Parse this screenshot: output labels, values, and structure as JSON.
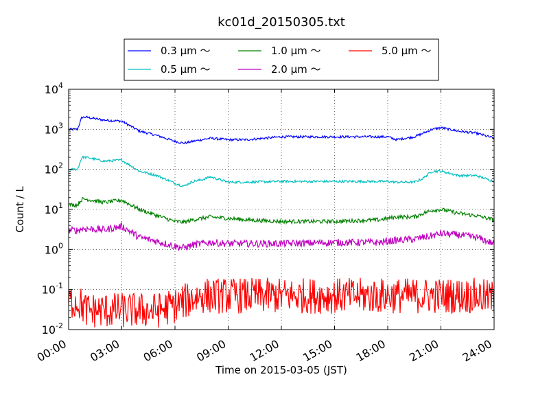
{
  "chart_data": {
    "type": "line",
    "title": "kc01d_20150305.txt",
    "xlabel": "Time on 2015-03-05 (JST)",
    "ylabel": "Count / L",
    "y_scale": "log",
    "ylim": [
      0.01,
      10000
    ],
    "xlim": [
      "00:00",
      "24:00"
    ],
    "grid": true,
    "legend_position": "top",
    "x_tick_labels": [
      "00:00",
      "03:00",
      "06:00",
      "09:00",
      "12:00",
      "15:00",
      "18:00",
      "21:00",
      "24:00"
    ],
    "y_ticks": [
      {
        "base": "10",
        "exp": "-2"
      },
      {
        "base": "10",
        "exp": "-1"
      },
      {
        "base": "10",
        "exp": "0"
      },
      {
        "base": "10",
        "exp": "1"
      },
      {
        "base": "10",
        "exp": "2"
      },
      {
        "base": "10",
        "exp": "3"
      },
      {
        "base": "10",
        "exp": "4"
      }
    ],
    "x_hours": [
      0,
      0.5,
      0.75,
      1,
      2,
      3,
      4,
      5,
      6,
      6.5,
      7,
      7.5,
      8,
      9,
      10,
      12,
      15,
      17.5,
      18,
      18.5,
      19.5,
      20,
      20.5,
      21,
      22,
      23,
      24
    ],
    "series": [
      {
        "name": "0.3 μm ～",
        "color": "#0000ff",
        "noise": 0.03,
        "values": [
          1000,
          1000,
          2000,
          2000,
          1700,
          1600,
          900,
          700,
          500,
          450,
          500,
          550,
          600,
          550,
          550,
          650,
          650,
          650,
          650,
          550,
          650,
          800,
          1000,
          1100,
          900,
          800,
          600
        ]
      },
      {
        "name": "0.5 μm ～",
        "color": "#00bfbf",
        "noise": 0.03,
        "values": [
          100,
          100,
          200,
          200,
          160,
          170,
          90,
          70,
          45,
          38,
          50,
          55,
          65,
          48,
          48,
          50,
          50,
          50,
          50,
          48,
          48,
          60,
          90,
          90,
          70,
          70,
          50
        ]
      },
      {
        "name": "1.0 μm ～",
        "color": "#008000",
        "noise": 0.05,
        "values": [
          13,
          13,
          18,
          18,
          15,
          17,
          10,
          7,
          5,
          4.8,
          5.5,
          6,
          6.5,
          6,
          5.5,
          5,
          5,
          5.5,
          6,
          6.5,
          6.5,
          8,
          9.5,
          10,
          8,
          7,
          5.5
        ]
      },
      {
        "name": "2.0 μm ～",
        "color": "#bf00bf",
        "noise": 0.09,
        "values": [
          3,
          3,
          3.3,
          3.3,
          3.1,
          3.8,
          2,
          1.6,
          1.2,
          1.1,
          1.3,
          1.4,
          1.5,
          1.4,
          1.4,
          1.4,
          1.5,
          1.5,
          1.6,
          1.7,
          1.8,
          2,
          2.2,
          2.5,
          2.3,
          2,
          1.4
        ]
      },
      {
        "name": "5.0 μm ～",
        "color": "#ff0000",
        "noise": 0.45,
        "values": [
          0.05,
          0.05,
          0.04,
          0.03,
          0.03,
          0.03,
          0.03,
          0.03,
          0.04,
          0.05,
          0.06,
          0.07,
          0.07,
          0.07,
          0.07,
          0.07,
          0.07,
          0.07,
          0.07,
          0.07,
          0.07,
          0.07,
          0.07,
          0.07,
          0.07,
          0.07,
          0.06
        ]
      }
    ],
    "legend": [
      {
        "label": "0.3 μm ～",
        "color": "#0000ff"
      },
      {
        "label": "1.0 μm ～",
        "color": "#008000"
      },
      {
        "label": "5.0 μm ～",
        "color": "#ff0000"
      },
      {
        "label": "0.5 μm ～",
        "color": "#00bfbf"
      },
      {
        "label": "2.0 μm ～",
        "color": "#bf00bf"
      }
    ]
  }
}
